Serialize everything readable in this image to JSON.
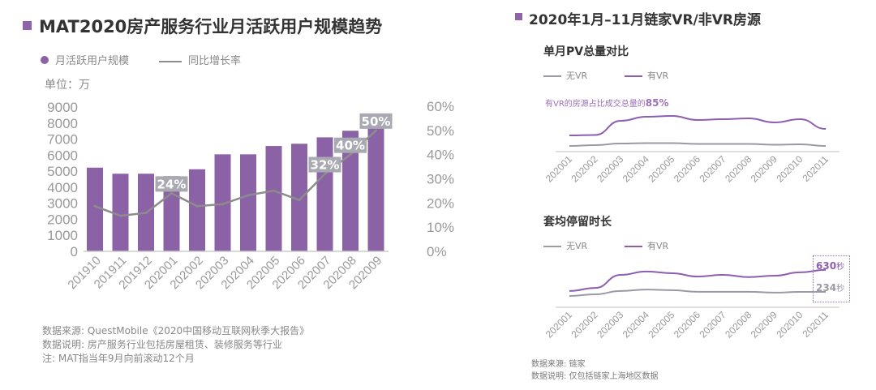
{
  "colors": {
    "bar": "#8b62a5",
    "growth_line": "#8c8c8c",
    "vr": "#8e5fb0",
    "no_vr": "#9a9aa6",
    "label_box": "#a9a9b2"
  },
  "left": {
    "title": "MAT2020房产服务行业月活跃用户规模趋势",
    "legend_bar": "月活跃用户规模",
    "legend_line": "同比增长率",
    "unit": "单位：万",
    "notes": [
      "数据来源: QuestMobile《2020中国移动互联网秋季大报告》",
      "数据说明: 房产服务行业包括房屋租赁、装修服务等行业",
      "注: MAT指当年9月向前滚动12个月"
    ]
  },
  "right": {
    "title": "2020年1月–11月链家VR/非VR房源",
    "notes": [
      "数据来源: 链家",
      "数据说明: 仅包括链家上海地区数据"
    ]
  },
  "chart_data": [
    {
      "type": "bar",
      "categories": [
        "201910",
        "201911",
        "201912",
        "202001",
        "202002",
        "202003",
        "202004",
        "202005",
        "202006",
        "202007",
        "202008",
        "202009"
      ],
      "series": [
        {
          "name": "月活跃用户规模",
          "type": "bar",
          "axis": "left",
          "values": [
            5220,
            4840,
            4840,
            4690,
            5120,
            6050,
            6050,
            6570,
            6710,
            7110,
            7520,
            7770
          ]
        },
        {
          "name": "同比增长率",
          "type": "line",
          "axis": "right",
          "values": [
            18.7,
            14.7,
            15.9,
            24,
            18.7,
            19.5,
            23.2,
            25.1,
            21.2,
            32,
            40,
            50
          ]
        }
      ],
      "data_labels": [
        {
          "index": 3,
          "text": "24%"
        },
        {
          "index": 9,
          "text": "32%"
        },
        {
          "index": 10,
          "text": "40%"
        },
        {
          "index": 11,
          "text": "50%"
        }
      ],
      "ylabel": "单位：万",
      "ylim": [
        0,
        9000
      ],
      "yticks": [
        "9000",
        "8000",
        "7000",
        "6000",
        "5000",
        "4000",
        "3000",
        "2000",
        "1000",
        "0"
      ],
      "y2lim": [
        0,
        60
      ],
      "y2ticks": [
        "60%",
        "50%",
        "40%",
        "30%",
        "20%",
        "10%",
        "0%"
      ],
      "grid": false,
      "legend": "top-left"
    },
    {
      "type": "line",
      "title": "单月PV总量对比",
      "categories": [
        "202001",
        "202002",
        "202003",
        "202004",
        "202005",
        "202006",
        "202007",
        "202008",
        "202009",
        "202010",
        "202011"
      ],
      "series": [
        {
          "name": "无VR",
          "values": [
            4,
            5,
            7,
            7.5,
            7.5,
            6.5,
            6.5,
            6.5,
            5.5,
            6,
            4
          ]
        },
        {
          "name": "有VR",
          "values": [
            17,
            17.5,
            35,
            40,
            41,
            36,
            37,
            38,
            33,
            37,
            25
          ]
        }
      ],
      "annotation": {
        "text": "有VR的房源占比成交总量的",
        "value": "85%"
      },
      "grid": false,
      "legend": "top-left"
    },
    {
      "type": "line",
      "title": "套均停留时长",
      "categories": [
        "202001",
        "202002",
        "202003",
        "202004",
        "202005",
        "202006",
        "202007",
        "202008",
        "202009",
        "202010",
        "202011"
      ],
      "series": [
        {
          "name": "无VR",
          "values": [
            160,
            190,
            250,
            275,
            265,
            235,
            235,
            235,
            220,
            234,
            234
          ]
        },
        {
          "name": "有VR",
          "values": [
            250,
            305,
            540,
            600,
            570,
            510,
            540,
            500,
            525,
            585,
            630
          ]
        }
      ],
      "end_labels": {
        "vr": "630",
        "no_vr": "234",
        "unit": "秒"
      },
      "grid": false,
      "legend": "top-left"
    }
  ]
}
